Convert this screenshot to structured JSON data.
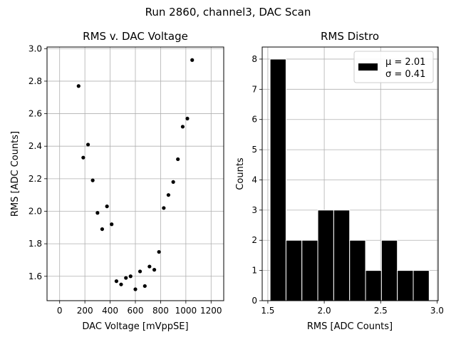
{
  "figure": {
    "suptitle": "Run 2860, channel3, DAC Scan"
  },
  "chart_data": [
    {
      "type": "scatter",
      "title": "RMS v. DAC Voltage",
      "xlabel": "DAC Voltage [mVppSE]",
      "ylabel": "RMS [ADC Counts]",
      "xlim": [
        -100,
        1300
      ],
      "ylim": [
        1.45,
        3.01
      ],
      "xticks": [
        0,
        200,
        400,
        600,
        800,
        1000,
        1200
      ],
      "xtick_labels": [
        "0",
        "200",
        "400",
        "600",
        "800",
        "1000",
        "1200"
      ],
      "yticks": [
        1.6,
        1.8,
        2.0,
        2.2,
        2.4,
        2.6,
        2.8,
        3.0
      ],
      "ytick_labels": [
        "1.6",
        "1.8",
        "2.0",
        "2.2",
        "2.4",
        "2.6",
        "2.8",
        "3.0"
      ],
      "grid": true,
      "marker_color": "#000000",
      "x": [
        150,
        187,
        225,
        262,
        300,
        337,
        375,
        412,
        450,
        487,
        525,
        562,
        600,
        637,
        675,
        712,
        750,
        787,
        825,
        862,
        900,
        937,
        975,
        1012,
        1050
      ],
      "y": [
        2.77,
        2.33,
        2.41,
        2.19,
        1.99,
        1.89,
        2.03,
        1.92,
        1.57,
        1.55,
        1.59,
        1.6,
        1.52,
        1.63,
        1.54,
        1.66,
        1.64,
        1.75,
        2.02,
        2.1,
        2.18,
        2.32,
        2.52,
        2.57,
        2.93
      ]
    },
    {
      "type": "bar",
      "subtype": "histogram",
      "title": "RMS Distro",
      "xlabel": "RMS [ADC Counts]",
      "ylabel": "Counts",
      "xlim": [
        1.45,
        3.01
      ],
      "ylim": [
        0,
        8.4
      ],
      "xticks": [
        1.5,
        2.0,
        2.5,
        3.0
      ],
      "xtick_labels": [
        "1.5",
        "2.0",
        "2.5",
        "3.0"
      ],
      "yticks": [
        0,
        1,
        2,
        3,
        4,
        5,
        6,
        7,
        8
      ],
      "ytick_labels": [
        "0",
        "1",
        "2",
        "3",
        "4",
        "5",
        "6",
        "7",
        "8"
      ],
      "grid": true,
      "bar_color": "#000000",
      "bin_edges": [
        1.52,
        1.661,
        1.802,
        1.943,
        2.084,
        2.225,
        2.366,
        2.507,
        2.648,
        2.789,
        2.93
      ],
      "counts": [
        8,
        2,
        2,
        3,
        3,
        2,
        1,
        2,
        1,
        1
      ],
      "legend": {
        "location": "upper right",
        "mu_label": "μ = 2.01",
        "sigma_label": "σ = 0.41"
      }
    }
  ]
}
